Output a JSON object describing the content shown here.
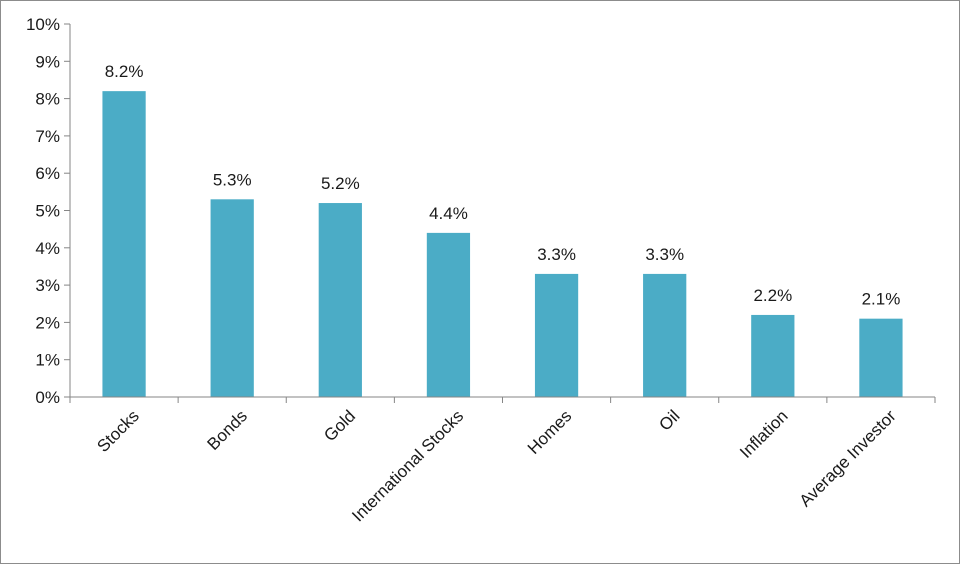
{
  "chart_data": {
    "type": "bar",
    "title": "",
    "xlabel": "",
    "ylabel": "",
    "categories": [
      "Stocks",
      "Bonds",
      "Gold",
      "International Stocks",
      "Homes",
      "Oil",
      "Inflation",
      "Average Investor"
    ],
    "values": [
      8.2,
      5.3,
      5.2,
      4.4,
      3.3,
      3.3,
      2.2,
      2.1
    ],
    "data_labels": [
      "8.2%",
      "5.3%",
      "5.2%",
      "4.4%",
      "3.3%",
      "3.3%",
      "2.2%",
      "2.1%"
    ],
    "ylim": [
      0,
      10
    ],
    "y_ticks": [
      0,
      1,
      2,
      3,
      4,
      5,
      6,
      7,
      8,
      9,
      10
    ],
    "y_tick_labels": [
      "0%",
      "1%",
      "2%",
      "3%",
      "4%",
      "5%",
      "6%",
      "7%",
      "8%",
      "9%",
      "10%"
    ],
    "grid": false,
    "legend": "none",
    "colors": {
      "bar": "#4bacc6",
      "axis": "#868686",
      "text": "#1a1a1a"
    }
  }
}
